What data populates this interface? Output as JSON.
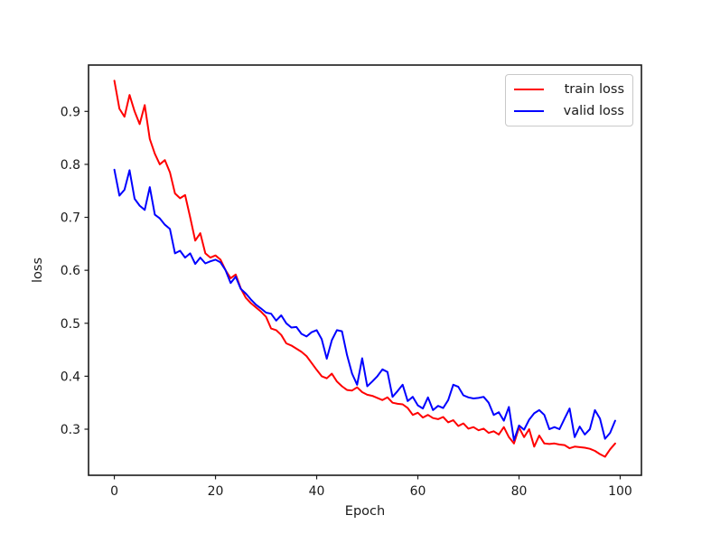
{
  "chart_data": {
    "type": "line",
    "xlabel": "Epoch",
    "ylabel": "loss",
    "x_start": 0,
    "x_step": 1,
    "xlim": [
      -5.1,
      104.2
    ],
    "ylim": [
      0.213,
      0.9875
    ],
    "xticks": [
      0,
      20,
      40,
      60,
      80,
      100
    ],
    "yticks": [
      0.3,
      0.4,
      0.5,
      0.6,
      0.7,
      0.8,
      0.9
    ],
    "grid": false,
    "background": "#ffffff",
    "axis_color": "#1a1a1a",
    "legend": {
      "position": "upper right",
      "entries": [
        "train loss",
        "valid loss"
      ]
    },
    "series": [
      {
        "name": "train loss",
        "color": "#ff0000",
        "values": [
          0.958,
          0.905,
          0.89,
          0.931,
          0.9,
          0.876,
          0.912,
          0.848,
          0.82,
          0.8,
          0.808,
          0.785,
          0.745,
          0.736,
          0.742,
          0.7,
          0.656,
          0.67,
          0.632,
          0.624,
          0.628,
          0.62,
          0.6,
          0.585,
          0.592,
          0.566,
          0.548,
          0.538,
          0.53,
          0.522,
          0.512,
          0.49,
          0.487,
          0.478,
          0.462,
          0.458,
          0.452,
          0.446,
          0.438,
          0.425,
          0.412,
          0.4,
          0.396,
          0.405,
          0.39,
          0.381,
          0.374,
          0.373,
          0.379,
          0.37,
          0.365,
          0.363,
          0.359,
          0.355,
          0.36,
          0.35,
          0.348,
          0.347,
          0.34,
          0.327,
          0.331,
          0.322,
          0.327,
          0.321,
          0.319,
          0.323,
          0.313,
          0.317,
          0.306,
          0.311,
          0.301,
          0.304,
          0.298,
          0.301,
          0.293,
          0.296,
          0.29,
          0.304,
          0.285,
          0.273,
          0.303,
          0.285,
          0.3,
          0.267,
          0.288,
          0.273,
          0.272,
          0.273,
          0.271,
          0.27,
          0.264,
          0.267,
          0.266,
          0.265,
          0.263,
          0.259,
          0.253,
          0.248,
          0.262,
          0.273
        ]
      },
      {
        "name": "valid loss",
        "color": "#0000ff",
        "values": [
          0.79,
          0.741,
          0.752,
          0.789,
          0.735,
          0.722,
          0.714,
          0.757,
          0.705,
          0.698,
          0.686,
          0.678,
          0.632,
          0.637,
          0.624,
          0.632,
          0.612,
          0.624,
          0.613,
          0.617,
          0.62,
          0.615,
          0.6,
          0.576,
          0.588,
          0.565,
          0.556,
          0.545,
          0.535,
          0.528,
          0.52,
          0.518,
          0.505,
          0.515,
          0.5,
          0.492,
          0.493,
          0.48,
          0.475,
          0.483,
          0.487,
          0.47,
          0.433,
          0.468,
          0.487,
          0.485,
          0.44,
          0.405,
          0.384,
          0.434,
          0.381,
          0.39,
          0.4,
          0.413,
          0.408,
          0.361,
          0.372,
          0.384,
          0.353,
          0.361,
          0.345,
          0.339,
          0.36,
          0.336,
          0.344,
          0.34,
          0.355,
          0.384,
          0.38,
          0.364,
          0.36,
          0.358,
          0.359,
          0.361,
          0.35,
          0.327,
          0.332,
          0.316,
          0.342,
          0.279,
          0.307,
          0.299,
          0.318,
          0.33,
          0.336,
          0.327,
          0.3,
          0.304,
          0.3,
          0.32,
          0.339,
          0.285,
          0.305,
          0.29,
          0.3,
          0.336,
          0.32,
          0.282,
          0.293,
          0.316
        ]
      }
    ]
  }
}
